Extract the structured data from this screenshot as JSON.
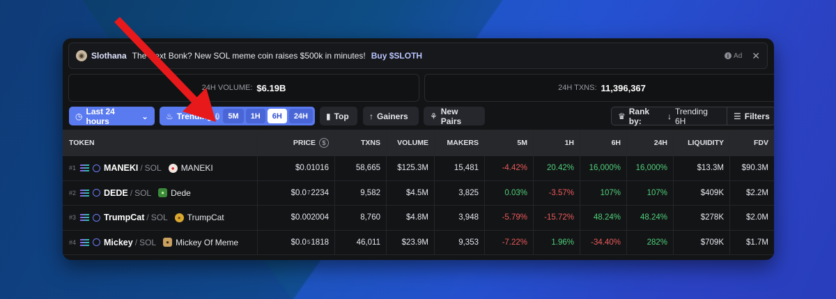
{
  "ad": {
    "name": "Slothana",
    "text": "The Next Bonk? New SOL meme coin raises $500k in minutes!",
    "cta": "Buy $SLOTH",
    "badge": "Ad",
    "close": "✕"
  },
  "stats": {
    "volume_label": "24H VOLUME:",
    "volume_value": "$6.19B",
    "txns_label": "24H TXNS:",
    "txns_value": "11,396,367"
  },
  "toolbar": {
    "time_label": "Last 24 hours",
    "trending_label": "Trending",
    "timeframes": [
      "5M",
      "1H",
      "6H",
      "24H"
    ],
    "active_timeframe": "6H",
    "top_label": "Top",
    "gainers_label": "Gainers",
    "new_pairs_label": "New Pairs",
    "rank_prefix": "Rank by:",
    "rank_value": "Trending 6H",
    "filters_label": "Filters"
  },
  "table": {
    "headers": [
      "TOKEN",
      "PRICE",
      "TXNS",
      "VOLUME",
      "MAKERS",
      "5M",
      "1H",
      "6H",
      "24H",
      "LIQUIDITY",
      "FDV"
    ],
    "rows": [
      {
        "rank": "#1",
        "symbol": "MANEKI",
        "quote": "SOL",
        "name": "MANEKI",
        "price_main": "$0.01016",
        "price_sub": "",
        "price_tail": "",
        "txns": "58,665",
        "volume": "$125.3M",
        "makers": "15,481",
        "m5": "-4.42%",
        "h1": "20.42%",
        "h6": "16,000%",
        "h24": "16,000%",
        "liquidity": "$13.3M",
        "fdv": "$90.3M"
      },
      {
        "rank": "#2",
        "symbol": "DEDE",
        "quote": "SOL",
        "name": "Dede",
        "price_main": "$0.0",
        "price_sub": "7",
        "price_tail": "2234",
        "txns": "9,582",
        "volume": "$4.5M",
        "makers": "3,825",
        "m5": "0.03%",
        "h1": "-3.57%",
        "h6": "107%",
        "h24": "107%",
        "liquidity": "$409K",
        "fdv": "$2.2M"
      },
      {
        "rank": "#3",
        "symbol": "TrumpCat",
        "quote": "SOL",
        "name": "TrumpCat",
        "price_main": "$0.002004",
        "price_sub": "",
        "price_tail": "",
        "txns": "8,760",
        "volume": "$4.8M",
        "makers": "3,948",
        "m5": "-5.79%",
        "h1": "-15.72%",
        "h6": "48.24%",
        "h24": "48.24%",
        "liquidity": "$278K",
        "fdv": "$2.0M"
      },
      {
        "rank": "#4",
        "symbol": "Mickey",
        "quote": "SOL",
        "name": "Mickey Of Meme",
        "price_main": "$0.0",
        "price_sub": "5",
        "price_tail": "1818",
        "txns": "46,011",
        "volume": "$23.9M",
        "makers": "9,353",
        "m5": "-7.22%",
        "h1": "1.96%",
        "h6": "-34.40%",
        "h24": "282%",
        "liquidity": "$709K",
        "fdv": "$1.7M"
      }
    ]
  },
  "colors": {
    "accent": "#5a7bef",
    "negative": "#ec5a5a",
    "positive": "#4fd07a",
    "arrow": "#e8191b"
  }
}
